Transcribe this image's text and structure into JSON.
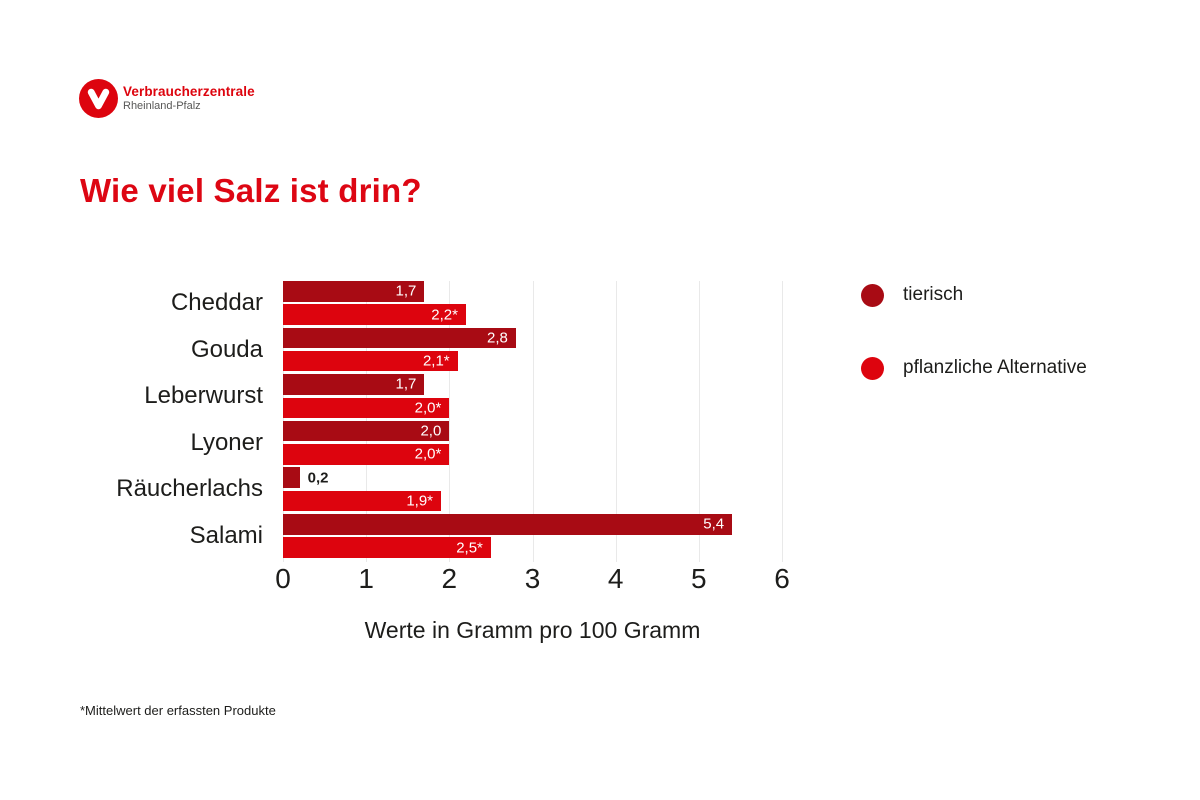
{
  "logo": {
    "title": "Verbraucherzentrale",
    "subtitle": "Rheinland-Pfalz",
    "brand_color": "#dd040e"
  },
  "title": "Wie viel Salz ist drin?",
  "title_color": "#dd0613",
  "chart_data": {
    "type": "bar",
    "orientation": "horizontal",
    "title": "Wie viel Salz ist drin?",
    "categories": [
      "Cheddar",
      "Gouda",
      "Leberwurst",
      "Lyoner",
      "Räucherlachs",
      "Salami"
    ],
    "series": [
      {
        "name": "tierisch",
        "color": "#a80b14",
        "values": [
          1.7,
          2.8,
          1.7,
          2.0,
          0.2,
          5.4
        ],
        "labels": [
          "1,7",
          "2,8",
          "1,7",
          "2,0",
          "0,2",
          "5,4"
        ]
      },
      {
        "name": "pflanzliche Alternative",
        "color": "#dd040e",
        "values": [
          2.2,
          2.1,
          2.0,
          2.0,
          1.9,
          2.5
        ],
        "labels": [
          "2,2*",
          "2,1*",
          "2,0*",
          "2,0*",
          "1,9*",
          "2,5*"
        ]
      }
    ],
    "xlabel": "Werte in Gramm pro 100 Gramm",
    "xticks": [
      "0",
      "1",
      "2",
      "3",
      "4",
      "5",
      "6"
    ],
    "xlim": [
      0,
      6
    ],
    "grid": true,
    "legend_position": "right",
    "gridline_color": "#e9e9e9"
  },
  "footnote": "*Mittelwert der erfassten Produkte"
}
